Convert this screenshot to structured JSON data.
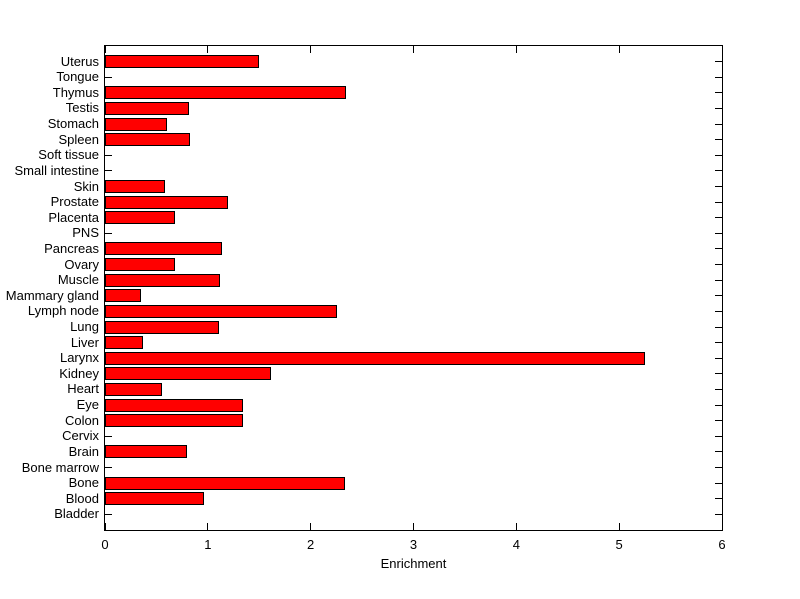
{
  "chart_data": {
    "type": "bar",
    "orientation": "horizontal",
    "title": "",
    "xlabel": "Enrichment",
    "ylabel": "",
    "xlim": [
      0,
      6
    ],
    "xticks": [
      0,
      1,
      2,
      3,
      4,
      5,
      6
    ],
    "grid": false,
    "legend": null,
    "bar_color": "#ff0000",
    "bar_edge_color": "#000000",
    "axis_color": "#000000",
    "background_color": "#ffffff",
    "categories": [
      "Uterus",
      "Tongue",
      "Thymus",
      "Testis",
      "Stomach",
      "Spleen",
      "Soft tissue",
      "Small intestine",
      "Skin",
      "Prostate",
      "Placenta",
      "PNS",
      "Pancreas",
      "Ovary",
      "Muscle",
      "Mammary gland",
      "Lymph node",
      "Lung",
      "Liver",
      "Larynx",
      "Kidney",
      "Heart",
      "Eye",
      "Colon",
      "Cervix",
      "Brain",
      "Bone marrow",
      "Bone",
      "Blood",
      "Bladder"
    ],
    "values": [
      1.5,
      0,
      2.34,
      0.82,
      0.6,
      0.83,
      0,
      0,
      0.58,
      1.2,
      0.68,
      0,
      1.14,
      0.68,
      1.12,
      0.35,
      2.26,
      1.11,
      0.37,
      5.25,
      1.61,
      0.55,
      1.34,
      1.34,
      0,
      0.8,
      0,
      2.33,
      0.96,
      0
    ]
  }
}
